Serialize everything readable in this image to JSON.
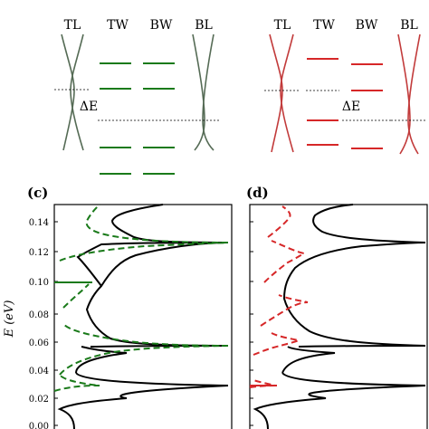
{
  "top_left": {
    "labels": [
      "TL",
      "TW",
      "BW",
      "BL"
    ],
    "delta": "ΔE",
    "color": "#556b55"
  },
  "top_right": {
    "labels": [
      "TL",
      "TW",
      "BW",
      "BL"
    ],
    "delta": "ΔE",
    "color": "#c23b3b"
  },
  "panel_c": {
    "label": "(c)"
  },
  "panel_d": {
    "label": "(d)"
  },
  "colors": {
    "green": "#1a7a1a",
    "red": "#d62728",
    "black": "#000000"
  },
  "chart_data": [
    {
      "type": "line",
      "panel": "(c)",
      "ylabel": "E (eV)",
      "ylim": [
        0.0,
        0.15
      ],
      "yticks": [
        "0.00",
        "0.02",
        "0.04",
        "0.06",
        "0.08",
        "0.10",
        "0.12",
        "0.14"
      ],
      "resonance_energies": [
        0.03,
        0.056,
        0.1,
        0.126
      ],
      "series": [
        {
          "style": "solid",
          "color": "#000000"
        },
        {
          "style": "dashed",
          "color": "#1a7a1a"
        }
      ]
    },
    {
      "type": "line",
      "panel": "(d)",
      "ylim": [
        0.0,
        0.15
      ],
      "resonance_energies": [
        0.03,
        0.056,
        0.126
      ],
      "series": [
        {
          "style": "solid",
          "color": "#000000"
        },
        {
          "style": "dashed",
          "color": "#d62728"
        }
      ]
    }
  ]
}
